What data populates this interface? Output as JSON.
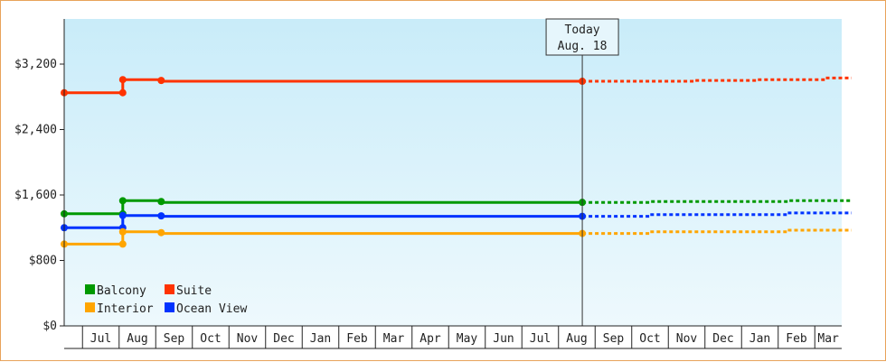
{
  "chart_data": {
    "type": "line",
    "title": "",
    "xlabel": "",
    "ylabel": "",
    "ylim": [
      0,
      3200
    ],
    "y_ticks": [
      {
        "value": 0,
        "label": "$0"
      },
      {
        "value": 800,
        "label": "$800"
      },
      {
        "value": 1600,
        "label": "$1,600"
      },
      {
        "value": 2400,
        "label": "$2,400"
      },
      {
        "value": 3200,
        "label": "$3,200"
      }
    ],
    "x_tick_labels": [
      "Jul",
      "Aug",
      "Sep",
      "Oct",
      "Nov",
      "Dec",
      "Jan",
      "Feb",
      "Mar",
      "Apr",
      "May",
      "Jun",
      "Jul",
      "Aug",
      "Sep",
      "Oct",
      "Nov",
      "Dec",
      "Jan",
      "Feb",
      "Mar"
    ],
    "today_marker": {
      "line1": "Today",
      "line2": "Aug. 18",
      "month_index": 14.15
    },
    "legend": {
      "placement": "bottom-left"
    },
    "grid": false,
    "series": [
      {
        "name": "Suite",
        "color": "#ff3300",
        "actual": [
          {
            "m": 0.0,
            "v": 2850
          },
          {
            "m": 1.6,
            "v": 2850
          },
          {
            "m": 1.6,
            "v": 3010
          },
          {
            "m": 2.65,
            "v": 3010
          },
          {
            "m": 2.65,
            "v": 2990
          },
          {
            "m": 14.15,
            "v": 2990
          }
        ],
        "forecast": [
          {
            "m": 14.15,
            "v": 2990
          },
          {
            "m": 17.2,
            "v": 2990
          },
          {
            "m": 17.2,
            "v": 3000
          },
          {
            "m": 18.9,
            "v": 3000
          },
          {
            "m": 18.9,
            "v": 3010
          },
          {
            "m": 20.8,
            "v": 3010
          },
          {
            "m": 20.8,
            "v": 3030
          },
          {
            "m": 21.5,
            "v": 3030
          }
        ]
      },
      {
        "name": "Balcony",
        "color": "#009900",
        "actual": [
          {
            "m": 0.0,
            "v": 1370
          },
          {
            "m": 1.6,
            "v": 1370
          },
          {
            "m": 1.6,
            "v": 1530
          },
          {
            "m": 2.65,
            "v": 1530
          },
          {
            "m": 2.65,
            "v": 1510
          },
          {
            "m": 14.15,
            "v": 1510
          }
        ],
        "forecast": [
          {
            "m": 14.15,
            "v": 1510
          },
          {
            "m": 16.0,
            "v": 1510
          },
          {
            "m": 16.0,
            "v": 1520
          },
          {
            "m": 19.8,
            "v": 1520
          },
          {
            "m": 19.8,
            "v": 1530
          },
          {
            "m": 21.5,
            "v": 1530
          }
        ]
      },
      {
        "name": "Ocean View",
        "color": "#0033ff",
        "actual": [
          {
            "m": 0.0,
            "v": 1200
          },
          {
            "m": 1.6,
            "v": 1200
          },
          {
            "m": 1.6,
            "v": 1350
          },
          {
            "m": 2.65,
            "v": 1350
          },
          {
            "m": 2.65,
            "v": 1340
          },
          {
            "m": 14.15,
            "v": 1340
          }
        ],
        "forecast": [
          {
            "m": 14.15,
            "v": 1340
          },
          {
            "m": 16.0,
            "v": 1340
          },
          {
            "m": 16.0,
            "v": 1360
          },
          {
            "m": 19.8,
            "v": 1360
          },
          {
            "m": 19.8,
            "v": 1380
          },
          {
            "m": 21.5,
            "v": 1380
          }
        ]
      },
      {
        "name": "Interior",
        "color": "#ffa500",
        "actual": [
          {
            "m": 0.0,
            "v": 1000
          },
          {
            "m": 1.6,
            "v": 1000
          },
          {
            "m": 1.6,
            "v": 1150
          },
          {
            "m": 2.65,
            "v": 1150
          },
          {
            "m": 2.65,
            "v": 1130
          },
          {
            "m": 14.15,
            "v": 1130
          }
        ],
        "forecast": [
          {
            "m": 14.15,
            "v": 1130
          },
          {
            "m": 16.0,
            "v": 1130
          },
          {
            "m": 16.0,
            "v": 1150
          },
          {
            "m": 19.8,
            "v": 1150
          },
          {
            "m": 19.8,
            "v": 1170
          },
          {
            "m": 21.5,
            "v": 1170
          }
        ]
      }
    ],
    "markers": [
      {
        "series": 0,
        "m": 0.0,
        "v": 2850
      },
      {
        "series": 0,
        "m": 1.6,
        "v": 2850
      },
      {
        "series": 0,
        "m": 1.6,
        "v": 3010
      },
      {
        "series": 0,
        "m": 2.65,
        "v": 3000
      },
      {
        "series": 0,
        "m": 14.15,
        "v": 2990
      },
      {
        "series": 1,
        "m": 0.0,
        "v": 1370
      },
      {
        "series": 1,
        "m": 1.6,
        "v": 1370
      },
      {
        "series": 1,
        "m": 1.6,
        "v": 1530
      },
      {
        "series": 1,
        "m": 2.65,
        "v": 1520
      },
      {
        "series": 1,
        "m": 14.15,
        "v": 1510
      },
      {
        "series": 2,
        "m": 0.0,
        "v": 1200
      },
      {
        "series": 2,
        "m": 1.6,
        "v": 1200
      },
      {
        "series": 2,
        "m": 1.6,
        "v": 1350
      },
      {
        "series": 2,
        "m": 2.65,
        "v": 1345
      },
      {
        "series": 2,
        "m": 14.15,
        "v": 1340
      },
      {
        "series": 3,
        "m": 0.0,
        "v": 1000
      },
      {
        "series": 3,
        "m": 1.6,
        "v": 1000
      },
      {
        "series": 3,
        "m": 1.6,
        "v": 1150
      },
      {
        "series": 3,
        "m": 2.65,
        "v": 1140
      },
      {
        "series": 3,
        "m": 14.15,
        "v": 1130
      }
    ],
    "legend_order": [
      1,
      0,
      3,
      2
    ]
  }
}
